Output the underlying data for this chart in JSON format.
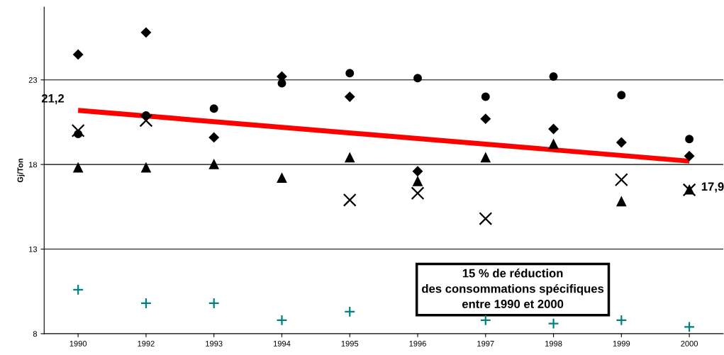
{
  "chart_data": {
    "type": "scatter",
    "ylabel": "Gj/Ton",
    "categories": [
      "1990",
      "1992",
      "1993",
      "1994",
      "1995",
      "1996",
      "1997",
      "1998",
      "1999",
      "2000"
    ],
    "ylim": [
      8,
      27.3
    ],
    "yticks": [
      8,
      13,
      18,
      23
    ],
    "grid": "y",
    "series": [
      {
        "color": "#000000",
        "marker": "diamond",
        "values": [
          24.5,
          25.8,
          19.6,
          23.2,
          22.0,
          17.6,
          20.7,
          20.1,
          19.3,
          18.5
        ]
      },
      {
        "color": "#000000",
        "marker": "circle",
        "values": [
          19.8,
          20.9,
          21.3,
          22.8,
          23.4,
          23.1,
          22.0,
          23.2,
          22.1,
          19.5
        ]
      },
      {
        "color": "#000000",
        "marker": "cross",
        "values": [
          20.0,
          20.6,
          null,
          null,
          15.9,
          16.3,
          14.8,
          null,
          17.1,
          16.5
        ]
      },
      {
        "color": "#000000",
        "marker": "triangle",
        "values": [
          17.8,
          17.8,
          18.0,
          17.2,
          18.4,
          17.0,
          18.4,
          19.2,
          15.8,
          16.5
        ]
      },
      {
        "color": "#008080",
        "marker": "plus",
        "values": [
          10.6,
          9.8,
          9.8,
          8.8,
          9.3,
          null,
          8.8,
          8.6,
          8.8,
          8.4
        ]
      },
      {
        "type": "line",
        "color": "#ff0000",
        "values": [
          21.2,
          null,
          null,
          null,
          null,
          null,
          null,
          null,
          null,
          18.2
        ]
      }
    ],
    "annotations": [
      {
        "text": "21,2",
        "x": "1990",
        "y": 21.2
      },
      {
        "text": "17,9",
        "x": "2000",
        "y": 18.2
      },
      "15 % de réduction\ndes consommations spécifiques\nentre 1990 et 2000"
    ]
  }
}
